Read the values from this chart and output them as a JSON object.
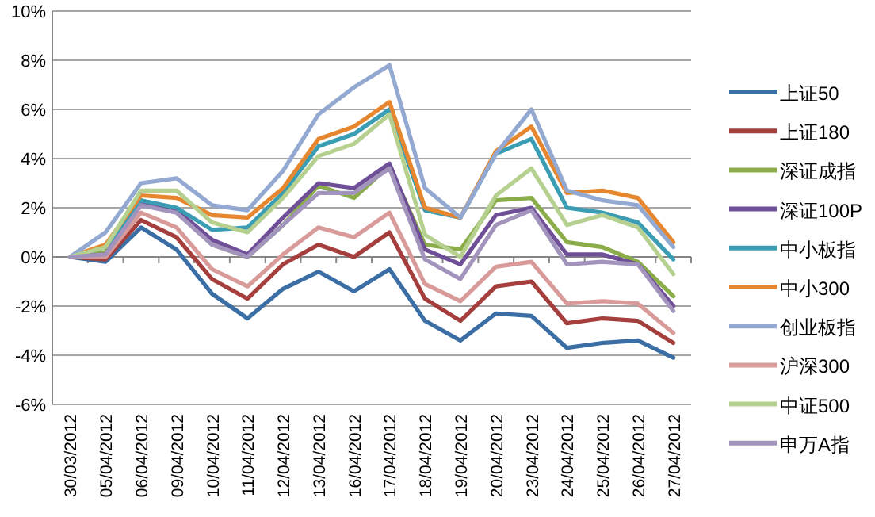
{
  "chart_data": {
    "type": "line",
    "categories": [
      "30/03/2012",
      "05/04/2012",
      "06/04/2012",
      "09/04/2012",
      "10/04/2012",
      "11/04/2012",
      "12/04/2012",
      "13/04/2012",
      "16/04/2012",
      "17/04/2012",
      "18/04/2012",
      "19/04/2012",
      "20/04/2012",
      "23/04/2012",
      "24/04/2012",
      "25/04/2012",
      "26/04/2012",
      "27/04/2012"
    ],
    "ylim": [
      -6,
      10
    ],
    "yticks": [
      {
        "value": -6,
        "label": "-6%"
      },
      {
        "value": -4,
        "label": "-4%"
      },
      {
        "value": -2,
        "label": "-2%"
      },
      {
        "value": 0,
        "label": "0%"
      },
      {
        "value": 2,
        "label": "2%"
      },
      {
        "value": 4,
        "label": "4%"
      },
      {
        "value": 6,
        "label": "6%"
      },
      {
        "value": 8,
        "label": "8%"
      },
      {
        "value": 10,
        "label": "10%"
      }
    ],
    "grid": "y",
    "legend": "right",
    "marker": "none",
    "line_style": "solid",
    "series": [
      {
        "name": "上证50",
        "color": "#3b6ea5",
        "values": [
          0,
          -0.2,
          1.2,
          0.3,
          -1.5,
          -2.5,
          -1.3,
          -0.6,
          -1.4,
          -0.5,
          -2.6,
          -3.4,
          -2.3,
          -2.4,
          -3.7,
          -3.5,
          -3.4,
          -4.1
        ]
      },
      {
        "name": "上证180",
        "color": "#a53f3d",
        "values": [
          0,
          -0.1,
          1.5,
          0.8,
          -0.9,
          -1.7,
          -0.3,
          0.5,
          0.0,
          1.0,
          -1.7,
          -2.6,
          -1.2,
          -1.0,
          -2.7,
          -2.5,
          -2.6,
          -3.5
        ]
      },
      {
        "name": "深证成指",
        "color": "#8aad4a",
        "values": [
          0,
          0.2,
          2.3,
          1.9,
          0.5,
          0.0,
          1.3,
          2.9,
          2.4,
          3.7,
          0.5,
          0.3,
          2.3,
          2.4,
          0.6,
          0.4,
          -0.2,
          -1.6
        ]
      },
      {
        "name": "深证100P",
        "color": "#6f4f97",
        "values": [
          0,
          0.1,
          2.2,
          1.9,
          0.7,
          0.1,
          1.6,
          3.0,
          2.8,
          3.8,
          0.3,
          -0.3,
          1.7,
          2.0,
          0.1,
          0.1,
          -0.3,
          -2.0
        ]
      },
      {
        "name": "中小板指",
        "color": "#3a9db4",
        "values": [
          0,
          0.4,
          2.3,
          2.0,
          1.1,
          1.2,
          2.6,
          4.5,
          5.0,
          6.0,
          1.9,
          1.6,
          4.2,
          4.8,
          2.0,
          1.8,
          1.4,
          -0.1
        ]
      },
      {
        "name": "中小300",
        "color": "#e6872f",
        "values": [
          0,
          0.5,
          2.5,
          2.4,
          1.7,
          1.6,
          2.8,
          4.8,
          5.3,
          6.3,
          2.0,
          1.6,
          4.3,
          5.3,
          2.6,
          2.7,
          2.4,
          0.6
        ]
      },
      {
        "name": "创业板指",
        "color": "#93a9d1",
        "values": [
          0,
          1.0,
          3.0,
          3.2,
          2.1,
          1.9,
          3.5,
          5.8,
          6.9,
          7.8,
          2.8,
          1.6,
          4.2,
          6.0,
          2.7,
          2.3,
          2.1,
          0.4
        ]
      },
      {
        "name": "沪深300",
        "color": "#d89b99",
        "values": [
          0,
          0.0,
          1.8,
          1.2,
          -0.5,
          -1.2,
          0.1,
          1.2,
          0.8,
          1.8,
          -1.1,
          -1.8,
          -0.4,
          -0.2,
          -1.9,
          -1.8,
          -1.9,
          -3.1
        ]
      },
      {
        "name": "中证500",
        "color": "#b6d08f",
        "values": [
          0,
          0.4,
          2.7,
          2.7,
          1.4,
          1.0,
          2.4,
          4.1,
          4.6,
          5.8,
          0.9,
          0.0,
          2.5,
          3.6,
          1.3,
          1.7,
          1.2,
          -0.7
        ]
      },
      {
        "name": "申万A指",
        "color": "#a394bd",
        "values": [
          0,
          0.1,
          2.1,
          1.8,
          0.5,
          0.0,
          1.3,
          2.6,
          2.6,
          3.6,
          -0.1,
          -0.9,
          1.3,
          1.9,
          -0.3,
          -0.2,
          -0.3,
          -2.2
        ]
      }
    ]
  }
}
